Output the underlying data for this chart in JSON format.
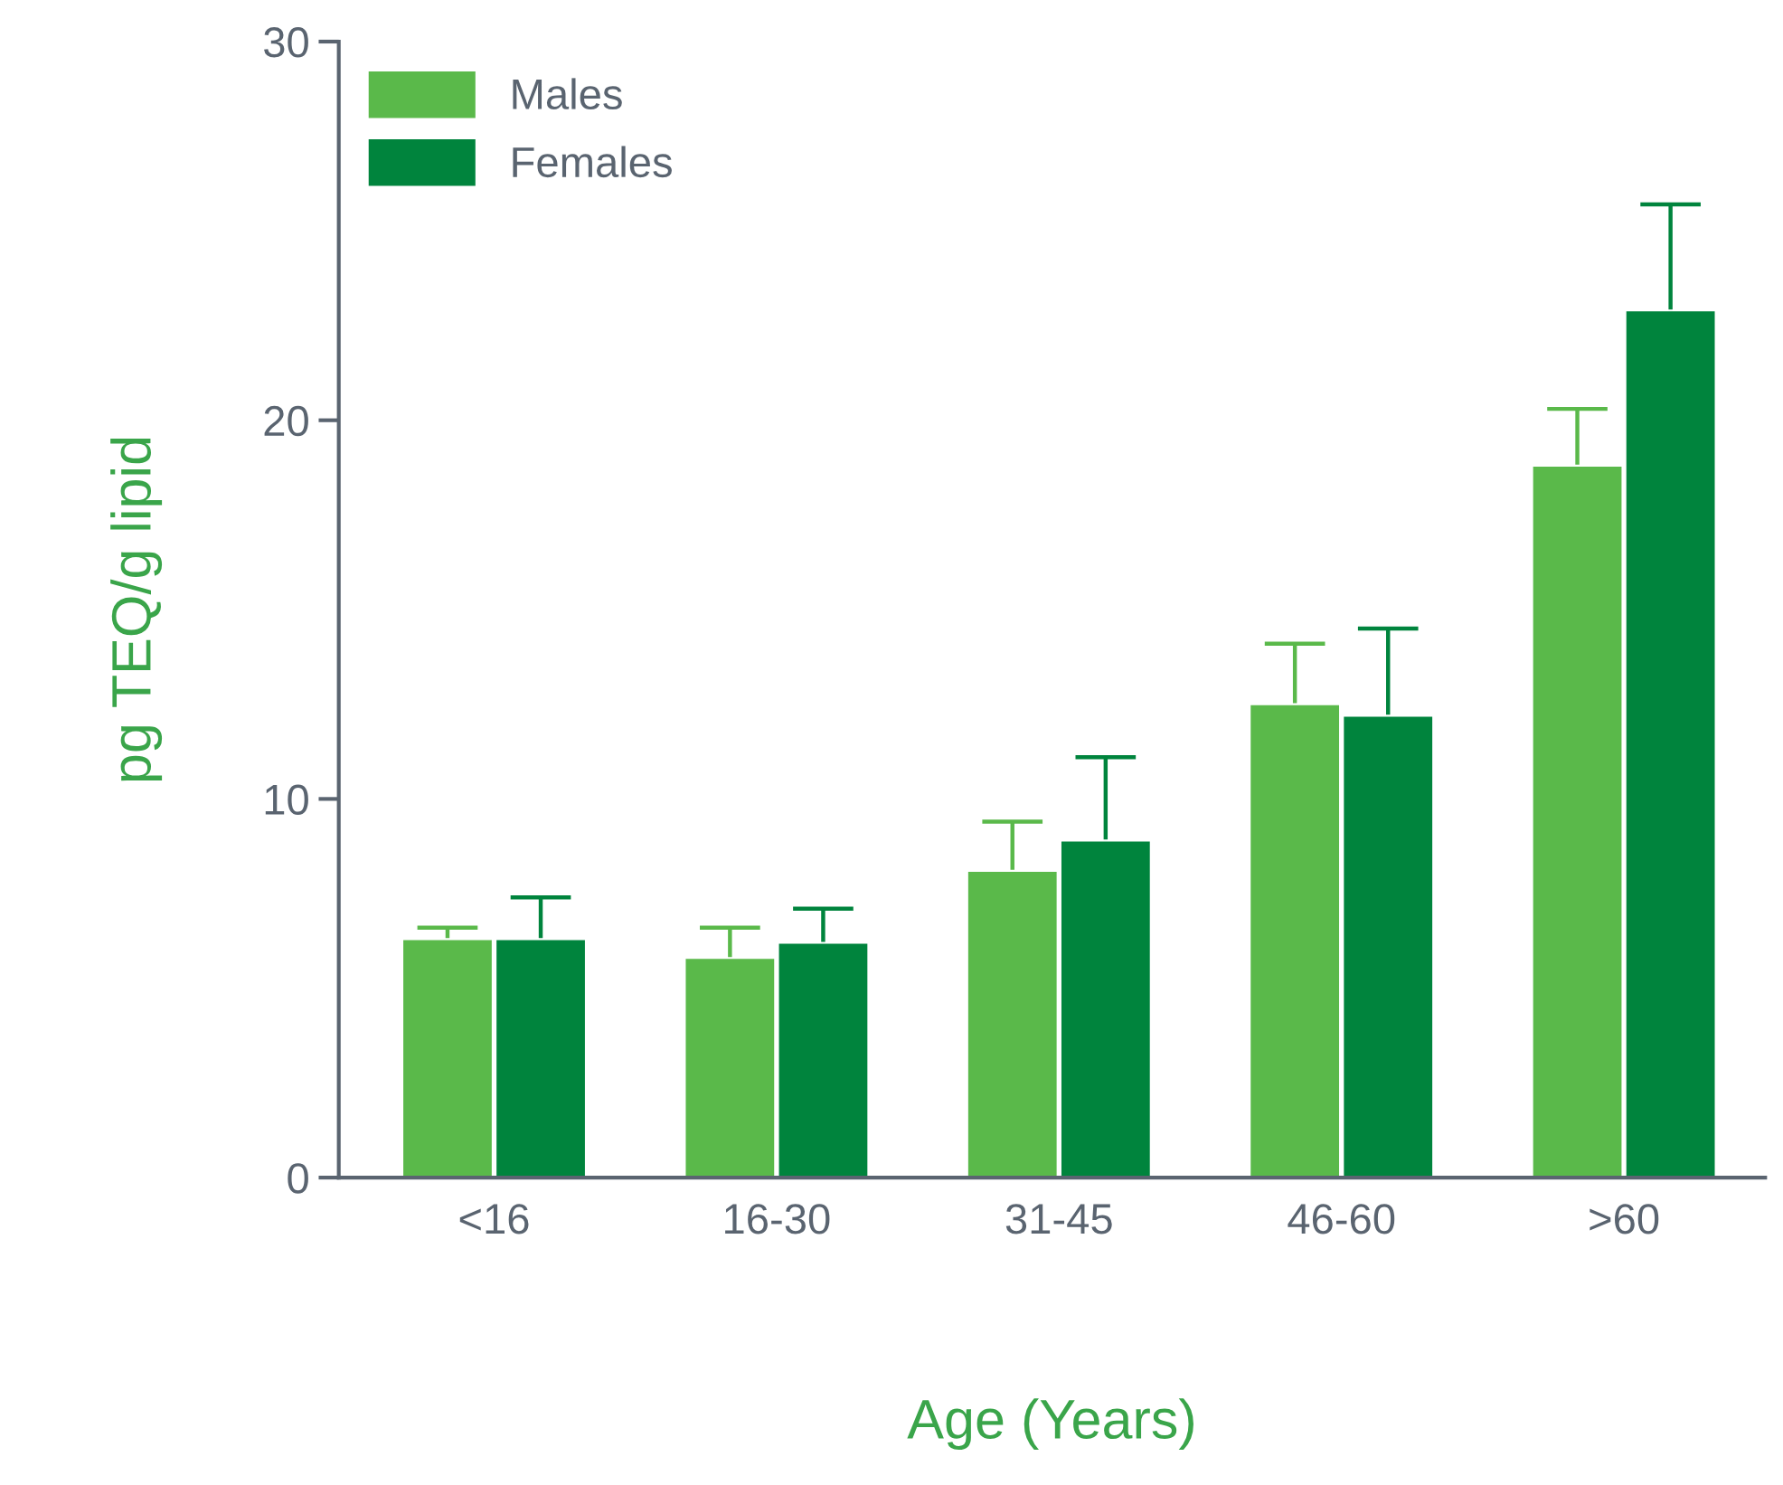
{
  "chart_data": {
    "type": "bar",
    "xlabel": "Age (Years)",
    "ylabel": "pg TEQ/g lipid",
    "categories": [
      "<16",
      "16-30",
      "31-45",
      "46-60",
      ">60"
    ],
    "series": [
      {
        "name": "Males",
        "color": "#5ab94a",
        "values": [
          6.3,
          5.8,
          8.1,
          12.5,
          18.8
        ],
        "errors": [
          [
            6.3,
            6.6
          ],
          [
            5.8,
            6.6
          ],
          [
            8.1,
            9.4
          ],
          [
            12.5,
            14.1
          ],
          [
            18.8,
            20.3
          ]
        ]
      },
      {
        "name": "Females",
        "color": "#00843d",
        "values": [
          6.3,
          6.2,
          8.9,
          12.2,
          22.9
        ],
        "errors": [
          [
            6.3,
            7.4
          ],
          [
            6.2,
            7.1
          ],
          [
            8.9,
            11.1
          ],
          [
            12.2,
            14.5
          ],
          [
            22.9,
            25.7
          ]
        ]
      }
    ],
    "ylim": [
      0,
      30
    ],
    "yticks": [
      0,
      10,
      20,
      30
    ],
    "grid": false,
    "legend": "top left"
  }
}
